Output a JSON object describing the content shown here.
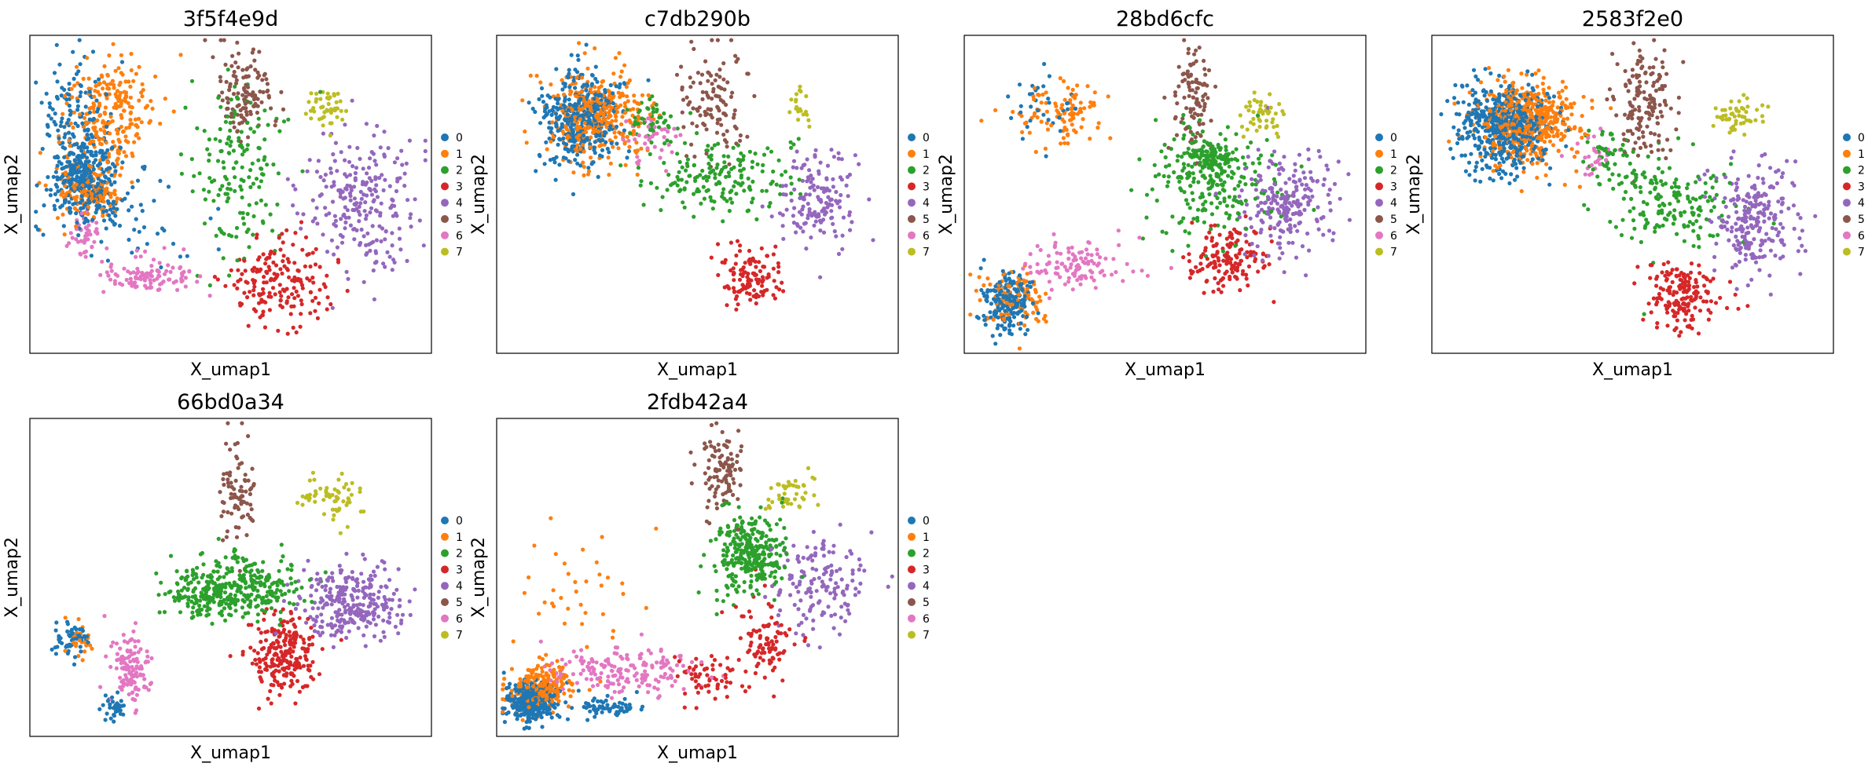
{
  "figure": {
    "palette": {
      "0": "#1f77b4",
      "1": "#ff7f0e",
      "2": "#2ca02c",
      "3": "#d62728",
      "4": "#9467bd",
      "5": "#8c564b",
      "6": "#e377c2",
      "7": "#bcbd22"
    }
  },
  "chart_data": [
    {
      "type": "scatter",
      "title": "3f5f4e9d",
      "xlabel": "X_umap1",
      "ylabel": "X_umap2",
      "legend": [
        "0",
        "1",
        "2",
        "3",
        "4",
        "5",
        "6",
        "7"
      ],
      "legend_position": "right",
      "grid": false,
      "clusters": [
        {
          "label": "0",
          "n": 520,
          "parts": [
            {
              "x": 0.14,
              "y": 0.45,
              "sx": 0.035,
              "sy": 0.06,
              "w": 0.55
            },
            {
              "x": 0.11,
              "y": 0.3,
              "sx": 0.04,
              "sy": 0.12,
              "w": 0.3
            },
            {
              "x": 0.2,
              "y": 0.56,
              "sx": 0.1,
              "sy": 0.1,
              "w": 0.15
            }
          ]
        },
        {
          "label": "1",
          "n": 380,
          "parts": [
            {
              "x": 0.2,
              "y": 0.25,
              "sx": 0.06,
              "sy": 0.09,
              "w": 0.6
            },
            {
              "x": 0.15,
              "y": 0.48,
              "sx": 0.04,
              "sy": 0.05,
              "w": 0.4
            }
          ]
        },
        {
          "label": "2",
          "n": 160,
          "parts": [
            {
              "x": 0.52,
              "y": 0.42,
              "sx": 0.06,
              "sy": 0.14,
              "w": 1
            }
          ]
        },
        {
          "label": "3",
          "n": 180,
          "parts": [
            {
              "x": 0.62,
              "y": 0.78,
              "sx": 0.07,
              "sy": 0.07,
              "w": 1
            }
          ]
        },
        {
          "label": "4",
          "n": 240,
          "parts": [
            {
              "x": 0.83,
              "y": 0.53,
              "sx": 0.07,
              "sy": 0.1,
              "w": 1
            }
          ]
        },
        {
          "label": "5",
          "n": 120,
          "parts": [
            {
              "x": 0.54,
              "y": 0.17,
              "sx": 0.035,
              "sy": 0.07,
              "w": 1
            }
          ]
        },
        {
          "label": "6",
          "n": 150,
          "parts": [
            {
              "x": 0.3,
              "y": 0.76,
              "sx": 0.06,
              "sy": 0.03,
              "w": 0.7
            },
            {
              "x": 0.14,
              "y": 0.63,
              "sx": 0.02,
              "sy": 0.04,
              "w": 0.3
            }
          ]
        },
        {
          "label": "7",
          "n": 45,
          "parts": [
            {
              "x": 0.74,
              "y": 0.23,
              "sx": 0.025,
              "sy": 0.03,
              "w": 1
            }
          ]
        }
      ]
    },
    {
      "type": "scatter",
      "title": "c7db290b",
      "xlabel": "X_umap1",
      "ylabel": "X_umap2",
      "legend": [
        "0",
        "1",
        "2",
        "3",
        "4",
        "5",
        "6",
        "7"
      ],
      "legend_position": "right",
      "grid": false,
      "clusters": [
        {
          "label": "0",
          "n": 380,
          "parts": [
            {
              "x": 0.21,
              "y": 0.26,
              "sx": 0.055,
              "sy": 0.07,
              "w": 1
            }
          ]
        },
        {
          "label": "1",
          "n": 360,
          "parts": [
            {
              "x": 0.25,
              "y": 0.26,
              "sx": 0.06,
              "sy": 0.07,
              "w": 1
            }
          ]
        },
        {
          "label": "2",
          "n": 220,
          "parts": [
            {
              "x": 0.56,
              "y": 0.44,
              "sx": 0.1,
              "sy": 0.06,
              "w": 0.8
            },
            {
              "x": 0.38,
              "y": 0.27,
              "sx": 0.03,
              "sy": 0.03,
              "w": 0.2
            }
          ]
        },
        {
          "label": "3",
          "n": 120,
          "parts": [
            {
              "x": 0.63,
              "y": 0.76,
              "sx": 0.04,
              "sy": 0.05,
              "w": 1
            }
          ]
        },
        {
          "label": "4",
          "n": 150,
          "parts": [
            {
              "x": 0.8,
              "y": 0.52,
              "sx": 0.05,
              "sy": 0.07,
              "w": 1
            }
          ]
        },
        {
          "label": "5",
          "n": 110,
          "parts": [
            {
              "x": 0.55,
              "y": 0.21,
              "sx": 0.04,
              "sy": 0.09,
              "w": 1
            }
          ]
        },
        {
          "label": "6",
          "n": 40,
          "parts": [
            {
              "x": 0.38,
              "y": 0.33,
              "sx": 0.04,
              "sy": 0.04,
              "w": 1
            }
          ]
        },
        {
          "label": "7",
          "n": 20,
          "parts": [
            {
              "x": 0.76,
              "y": 0.23,
              "sx": 0.012,
              "sy": 0.03,
              "w": 1
            }
          ]
        }
      ]
    },
    {
      "type": "scatter",
      "title": "28bd6cfc",
      "xlabel": "X_umap1",
      "ylabel": "X_umap2",
      "legend": [
        "0",
        "1",
        "2",
        "3",
        "4",
        "5",
        "6",
        "7"
      ],
      "legend_position": "right",
      "grid": false,
      "clusters": [
        {
          "label": "0",
          "n": 220,
          "parts": [
            {
              "x": 0.11,
              "y": 0.84,
              "sx": 0.03,
              "sy": 0.05,
              "w": 0.85
            },
            {
              "x": 0.2,
              "y": 0.24,
              "sx": 0.05,
              "sy": 0.06,
              "w": 0.15
            }
          ]
        },
        {
          "label": "1",
          "n": 200,
          "parts": [
            {
              "x": 0.25,
              "y": 0.24,
              "sx": 0.06,
              "sy": 0.05,
              "w": 0.5
            },
            {
              "x": 0.13,
              "y": 0.83,
              "sx": 0.04,
              "sy": 0.05,
              "w": 0.5
            }
          ]
        },
        {
          "label": "2",
          "n": 320,
          "parts": [
            {
              "x": 0.62,
              "y": 0.46,
              "sx": 0.08,
              "sy": 0.09,
              "w": 0.7
            },
            {
              "x": 0.61,
              "y": 0.38,
              "sx": 0.03,
              "sy": 0.03,
              "w": 0.3
            }
          ]
        },
        {
          "label": "3",
          "n": 150,
          "parts": [
            {
              "x": 0.66,
              "y": 0.71,
              "sx": 0.045,
              "sy": 0.05,
              "w": 1
            }
          ]
        },
        {
          "label": "4",
          "n": 220,
          "parts": [
            {
              "x": 0.8,
              "y": 0.53,
              "sx": 0.06,
              "sy": 0.08,
              "w": 1
            }
          ]
        },
        {
          "label": "5",
          "n": 100,
          "parts": [
            {
              "x": 0.57,
              "y": 0.2,
              "sx": 0.025,
              "sy": 0.09,
              "w": 1
            }
          ]
        },
        {
          "label": "6",
          "n": 110,
          "parts": [
            {
              "x": 0.28,
              "y": 0.73,
              "sx": 0.07,
              "sy": 0.04,
              "w": 1
            }
          ]
        },
        {
          "label": "7",
          "n": 50,
          "parts": [
            {
              "x": 0.74,
              "y": 0.25,
              "sx": 0.025,
              "sy": 0.03,
              "w": 1
            }
          ]
        }
      ]
    },
    {
      "type": "scatter",
      "title": "2583f2e0",
      "xlabel": "X_umap1",
      "ylabel": "X_umap2",
      "legend": [
        "0",
        "1",
        "2",
        "3",
        "4",
        "5",
        "6",
        "7"
      ],
      "legend_position": "right",
      "grid": false,
      "clusters": [
        {
          "label": "0",
          "n": 520,
          "parts": [
            {
              "x": 0.18,
              "y": 0.29,
              "sx": 0.055,
              "sy": 0.07,
              "w": 1
            }
          ]
        },
        {
          "label": "1",
          "n": 480,
          "parts": [
            {
              "x": 0.24,
              "y": 0.28,
              "sx": 0.06,
              "sy": 0.07,
              "w": 1
            }
          ]
        },
        {
          "label": "2",
          "n": 220,
          "parts": [
            {
              "x": 0.58,
              "y": 0.52,
              "sx": 0.08,
              "sy": 0.08,
              "w": 0.8
            },
            {
              "x": 0.44,
              "y": 0.36,
              "sx": 0.03,
              "sy": 0.04,
              "w": 0.2
            }
          ]
        },
        {
          "label": "3",
          "n": 170,
          "parts": [
            {
              "x": 0.62,
              "y": 0.82,
              "sx": 0.05,
              "sy": 0.05,
              "w": 1
            }
          ]
        },
        {
          "label": "4",
          "n": 240,
          "parts": [
            {
              "x": 0.8,
              "y": 0.58,
              "sx": 0.055,
              "sy": 0.08,
              "w": 1
            }
          ]
        },
        {
          "label": "5",
          "n": 150,
          "parts": [
            {
              "x": 0.53,
              "y": 0.22,
              "sx": 0.035,
              "sy": 0.09,
              "w": 1
            }
          ]
        },
        {
          "label": "6",
          "n": 30,
          "parts": [
            {
              "x": 0.4,
              "y": 0.38,
              "sx": 0.03,
              "sy": 0.04,
              "w": 1
            }
          ]
        },
        {
          "label": "7",
          "n": 50,
          "parts": [
            {
              "x": 0.76,
              "y": 0.25,
              "sx": 0.03,
              "sy": 0.03,
              "w": 1
            }
          ]
        }
      ]
    },
    {
      "type": "scatter",
      "title": "66bd0a34",
      "xlabel": "X_umap1",
      "ylabel": "X_umap2",
      "legend": [
        "0",
        "1",
        "2",
        "3",
        "4",
        "5",
        "6",
        "7"
      ],
      "legend_position": "right",
      "grid": false,
      "clusters": [
        {
          "label": "0",
          "n": 90,
          "parts": [
            {
              "x": 0.1,
              "y": 0.69,
              "sx": 0.02,
              "sy": 0.025,
              "w": 0.6
            },
            {
              "x": 0.21,
              "y": 0.91,
              "sx": 0.015,
              "sy": 0.02,
              "w": 0.4
            }
          ]
        },
        {
          "label": "1",
          "n": 25,
          "parts": [
            {
              "x": 0.12,
              "y": 0.7,
              "sx": 0.03,
              "sy": 0.03,
              "w": 1
            }
          ]
        },
        {
          "label": "2",
          "n": 380,
          "parts": [
            {
              "x": 0.52,
              "y": 0.53,
              "sx": 0.07,
              "sy": 0.05,
              "w": 0.85
            },
            {
              "x": 0.4,
              "y": 0.56,
              "sx": 0.04,
              "sy": 0.03,
              "w": 0.15
            }
          ]
        },
        {
          "label": "3",
          "n": 230,
          "parts": [
            {
              "x": 0.63,
              "y": 0.74,
              "sx": 0.04,
              "sy": 0.06,
              "w": 1
            }
          ]
        },
        {
          "label": "4",
          "n": 280,
          "parts": [
            {
              "x": 0.8,
              "y": 0.58,
              "sx": 0.06,
              "sy": 0.06,
              "w": 1
            }
          ]
        },
        {
          "label": "5",
          "n": 80,
          "parts": [
            {
              "x": 0.52,
              "y": 0.23,
              "sx": 0.02,
              "sy": 0.09,
              "w": 1
            }
          ]
        },
        {
          "label": "6",
          "n": 120,
          "parts": [
            {
              "x": 0.25,
              "y": 0.79,
              "sx": 0.025,
              "sy": 0.06,
              "w": 1
            }
          ]
        },
        {
          "label": "7",
          "n": 60,
          "parts": [
            {
              "x": 0.74,
              "y": 0.25,
              "sx": 0.035,
              "sy": 0.04,
              "w": 1
            }
          ]
        }
      ]
    },
    {
      "type": "scatter",
      "title": "2fdb42a4",
      "xlabel": "X_umap1",
      "ylabel": "X_umap2",
      "legend": [
        "0",
        "1",
        "2",
        "3",
        "4",
        "5",
        "6",
        "7"
      ],
      "legend_position": "right",
      "grid": false,
      "clusters": [
        {
          "label": "0",
          "n": 420,
          "parts": [
            {
              "x": 0.09,
              "y": 0.89,
              "sx": 0.03,
              "sy": 0.03,
              "w": 0.85
            },
            {
              "x": 0.28,
              "y": 0.91,
              "sx": 0.04,
              "sy": 0.02,
              "w": 0.15
            }
          ]
        },
        {
          "label": "1",
          "n": 250,
          "parts": [
            {
              "x": 0.11,
              "y": 0.85,
              "sx": 0.04,
              "sy": 0.04,
              "w": 0.85
            },
            {
              "x": 0.22,
              "y": 0.55,
              "sx": 0.08,
              "sy": 0.1,
              "w": 0.15
            }
          ]
        },
        {
          "label": "2",
          "n": 300,
          "parts": [
            {
              "x": 0.63,
              "y": 0.43,
              "sx": 0.04,
              "sy": 0.07,
              "w": 1
            }
          ]
        },
        {
          "label": "3",
          "n": 150,
          "parts": [
            {
              "x": 0.67,
              "y": 0.7,
              "sx": 0.035,
              "sy": 0.07,
              "w": 0.6
            },
            {
              "x": 0.53,
              "y": 0.81,
              "sx": 0.04,
              "sy": 0.04,
              "w": 0.4
            }
          ]
        },
        {
          "label": "4",
          "n": 150,
          "parts": [
            {
              "x": 0.8,
              "y": 0.52,
              "sx": 0.06,
              "sy": 0.08,
              "w": 1
            }
          ]
        },
        {
          "label": "5",
          "n": 100,
          "parts": [
            {
              "x": 0.56,
              "y": 0.18,
              "sx": 0.025,
              "sy": 0.07,
              "w": 1
            }
          ]
        },
        {
          "label": "6",
          "n": 170,
          "parts": [
            {
              "x": 0.32,
              "y": 0.79,
              "sx": 0.09,
              "sy": 0.035,
              "w": 1
            }
          ]
        },
        {
          "label": "7",
          "n": 45,
          "parts": [
            {
              "x": 0.73,
              "y": 0.23,
              "sx": 0.03,
              "sy": 0.03,
              "w": 1
            }
          ]
        }
      ]
    }
  ]
}
